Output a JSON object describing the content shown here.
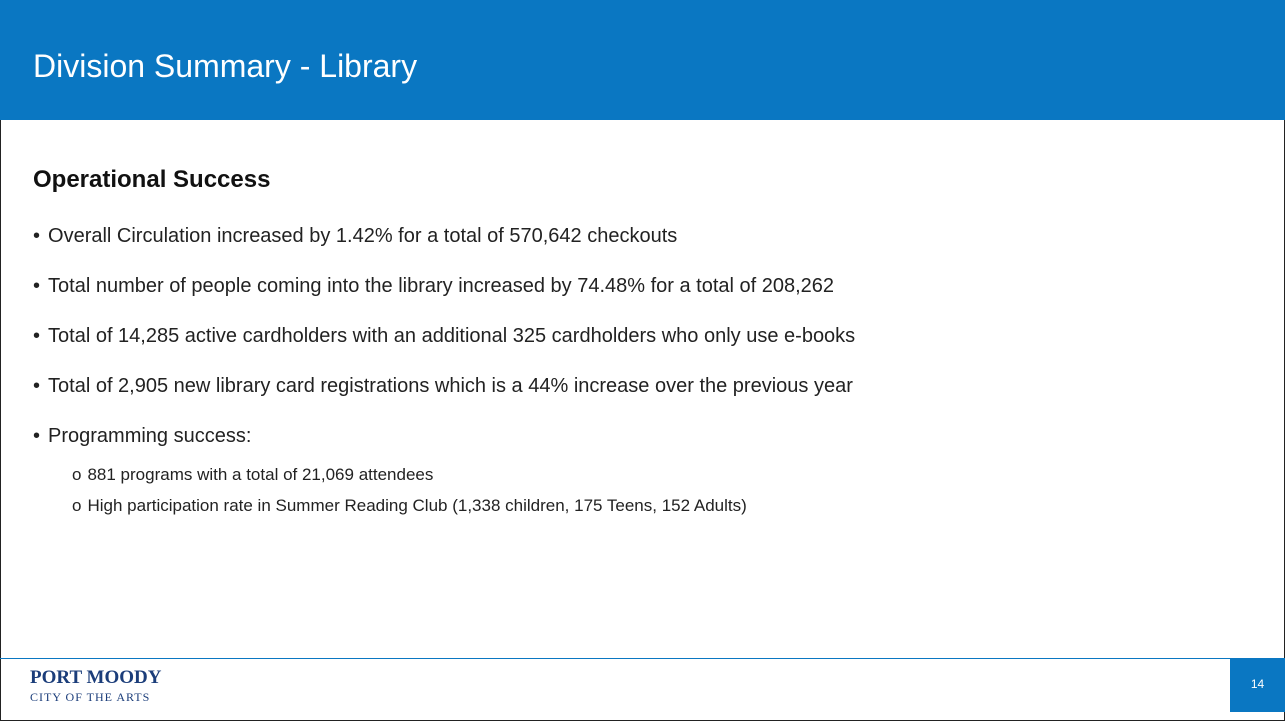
{
  "header": {
    "title": "Division Summary - Library"
  },
  "section": {
    "heading": "Operational Success",
    "bullets": [
      "Overall Circulation increased by 1.42% for a total of 570,642 checkouts",
      "Total number of people coming into the library increased by 74.48% for a total of 208,262",
      "Total of 14,285 active cardholders with an additional 325 cardholders who only use e-books",
      "Total of 2,905 new library card registrations which is a 44% increase over the previous year",
      "Programming success:"
    ],
    "sub_bullets": [
      "881 programs with a total of 21,069 attendees",
      "High participation rate in Summer Reading Club (1,338 children, 175 Teens, 152 Adults)"
    ]
  },
  "footer": {
    "logo_line1": "PORT MOODY",
    "logo_line2": "CITY OF THE ARTS",
    "page_number": "14"
  }
}
